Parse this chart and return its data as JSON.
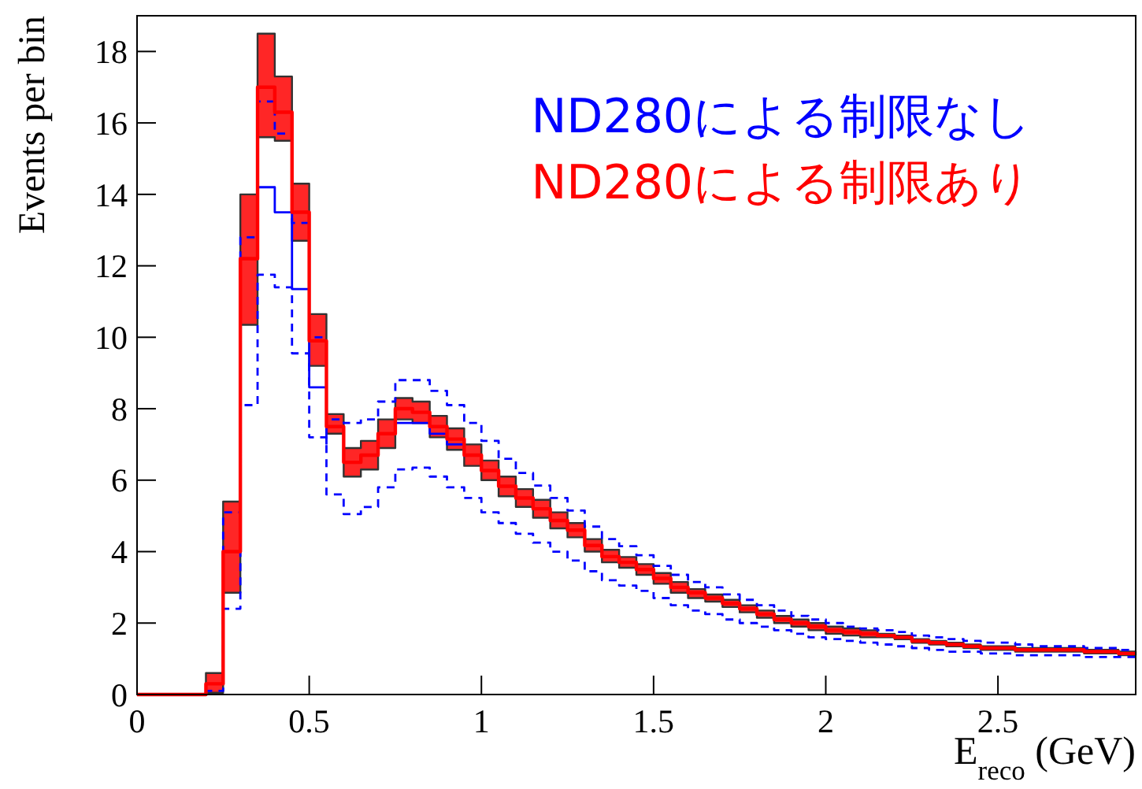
{
  "chart_data": {
    "type": "step",
    "xlabel": "E$_{reco}$ (GeV)",
    "ylabel": "Events per bin",
    "x": [
      0,
      0.2,
      0.25,
      0.3,
      0.35,
      0.4,
      0.45,
      0.5,
      0.55,
      0.6,
      0.65,
      0.7,
      0.75,
      0.8,
      0.85,
      0.9,
      0.95,
      1,
      1.05,
      1.1,
      1.15,
      1.2,
      1.25,
      1.3,
      1.35,
      1.4,
      1.45,
      1.5,
      1.55,
      1.6,
      1.65,
      1.7,
      1.75,
      1.8,
      1.85,
      1.9,
      1.95,
      2,
      2.05,
      2.1,
      2.15,
      2.2,
      2.25,
      2.3,
      2.35,
      2.4,
      2.45,
      2.5,
      2.55,
      2.6,
      2.65,
      2.7,
      2.75,
      2.8,
      2.85,
      2.9
    ],
    "series": [
      {
        "name": "ND280による制限なし",
        "color": "#0000ff",
        "values": [
          null,
          null,
          null,
          null,
          14.2,
          13.5,
          11.35,
          8.6,
          7.0,
          null,
          null,
          null,
          7.6,
          7.6,
          7.3,
          7.0,
          6.65,
          null,
          null,
          null,
          null,
          null,
          null,
          null,
          null,
          null,
          null,
          null,
          null,
          null,
          null,
          null,
          null,
          null,
          null,
          null,
          null,
          null,
          null,
          null,
          null,
          null,
          null,
          null,
          null,
          null,
          null,
          null,
          null,
          null,
          null,
          null,
          null,
          null,
          null,
          null
        ]
      },
      {
        "color": "#0000ff",
        "line_style": "dashed",
        "values": [
          0,
          0.3,
          5.1,
          12.8,
          16.6,
          15.7,
          13.2,
          10.0,
          7.7,
          7.6,
          7.7,
          8.2,
          8.8,
          8.8,
          8.5,
          8.1,
          7.6,
          7.1,
          6.6,
          6.2,
          5.85,
          5.5,
          5.15,
          4.7,
          4.35,
          4.15,
          3.9,
          3.6,
          3.35,
          3.15,
          3.0,
          2.8,
          2.65,
          2.5,
          2.35,
          2.2,
          2.1,
          2.0,
          1.9,
          1.85,
          1.8,
          1.75,
          1.65,
          1.6,
          1.55,
          1.5,
          1.45,
          1.45,
          1.4,
          1.35,
          1.35,
          1.35,
          1.3,
          1.3,
          1.25,
          1.25
        ]
      },
      {
        "color": "#0000ff",
        "line_style": "dashed",
        "values": [
          0,
          0.1,
          2.4,
          8.1,
          11.75,
          11.4,
          9.55,
          7.2,
          5.6,
          5.05,
          5.25,
          5.8,
          6.3,
          6.35,
          6.1,
          5.8,
          5.5,
          5.1,
          4.8,
          4.5,
          4.25,
          4.0,
          3.75,
          3.45,
          3.2,
          3.05,
          2.9,
          2.7,
          2.5,
          2.35,
          2.25,
          2.1,
          2.0,
          1.9,
          1.8,
          1.7,
          1.6,
          1.55,
          1.5,
          1.45,
          1.4,
          1.35,
          1.3,
          1.25,
          1.2,
          1.2,
          1.15,
          1.15,
          1.1,
          1.1,
          1.1,
          1.1,
          1.05,
          1.05,
          1.05,
          1.05
        ]
      },
      {
        "name": "ND280による制限あり",
        "color": "#ff0000",
        "values": [
          0,
          0.3,
          4.0,
          12.2,
          17.0,
          16.3,
          13.5,
          9.9,
          7.5,
          6.5,
          6.7,
          7.3,
          8.0,
          7.9,
          7.5,
          7.15,
          6.7,
          6.27,
          5.83,
          5.5,
          5.2,
          4.87,
          4.6,
          4.17,
          3.86,
          3.7,
          3.5,
          3.25,
          3.0,
          2.85,
          2.7,
          2.55,
          2.4,
          2.25,
          2.1,
          2.0,
          1.9,
          1.8,
          1.75,
          1.7,
          1.65,
          1.6,
          1.5,
          1.45,
          1.4,
          1.35,
          1.3,
          1.3,
          1.25,
          1.25,
          1.25,
          1.25,
          1.2,
          1.2,
          1.15,
          1.15
        ],
        "lower": [
          null,
          0.05,
          2.85,
          10.35,
          15.6,
          15.5,
          12.7,
          9.2,
          7.3,
          6.1,
          6.3,
          6.9,
          7.7,
          7.6,
          7.2,
          6.85,
          6.4,
          6.0,
          5.55,
          5.25,
          4.95,
          4.65,
          4.4,
          4.0,
          3.7,
          3.55,
          3.35,
          3.1,
          2.85,
          2.7,
          2.6,
          2.45,
          2.3,
          2.15,
          2.0,
          1.9,
          1.8,
          1.7,
          1.65,
          1.6,
          1.6,
          1.55,
          1.45,
          1.4,
          1.35,
          1.3,
          1.25,
          1.25,
          1.2,
          1.2,
          1.2,
          1.2,
          1.15,
          1.15,
          1.1,
          1.1
        ],
        "upper": [
          null,
          0.6,
          5.4,
          14.0,
          18.5,
          17.3,
          14.3,
          10.65,
          7.85,
          6.9,
          7.1,
          7.7,
          8.3,
          8.2,
          7.8,
          7.45,
          7.0,
          6.55,
          6.1,
          5.75,
          5.45,
          5.1,
          4.8,
          4.35,
          4.05,
          3.85,
          3.65,
          3.4,
          3.15,
          2.95,
          2.8,
          2.65,
          2.5,
          2.35,
          2.2,
          2.1,
          2.0,
          1.9,
          1.85,
          1.8,
          1.7,
          1.65,
          1.55,
          1.5,
          1.45,
          1.4,
          1.35,
          1.35,
          1.3,
          1.3,
          1.3,
          1.3,
          1.25,
          1.25,
          1.2,
          1.2
        ]
      }
    ],
    "xlim": [
      0,
      2.9
    ],
    "ylim": [
      0,
      19
    ],
    "xticks": [
      0,
      0.5,
      1,
      1.5,
      2,
      2.5
    ],
    "yticks": [
      0,
      2,
      4,
      6,
      8,
      10,
      12,
      14,
      16,
      18
    ],
    "grid": false,
    "legend": "top right"
  }
}
